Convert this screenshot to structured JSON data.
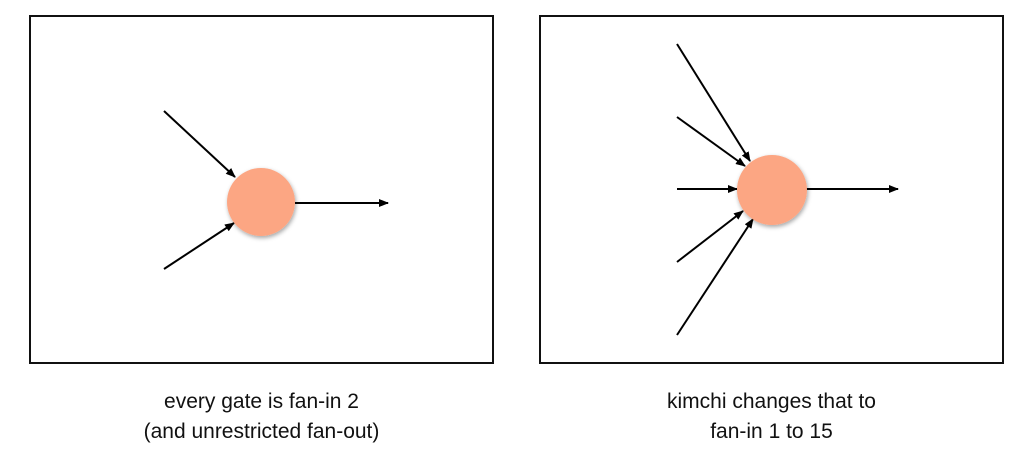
{
  "left_panel": {
    "caption_line1": "every gate is fan-in 2",
    "caption_line2": "(and unrestricted fan-out)",
    "fan_in": 2,
    "fan_out_arrows": 1
  },
  "right_panel": {
    "caption_line1": "kimchi changes that to",
    "caption_line2": "fan-in 1 to 15",
    "fan_in_arrows_drawn": 5,
    "fan_out_arrows": 1
  },
  "colors": {
    "gate_fill": "#FCA683",
    "line": "#000000",
    "border": "#111111"
  }
}
